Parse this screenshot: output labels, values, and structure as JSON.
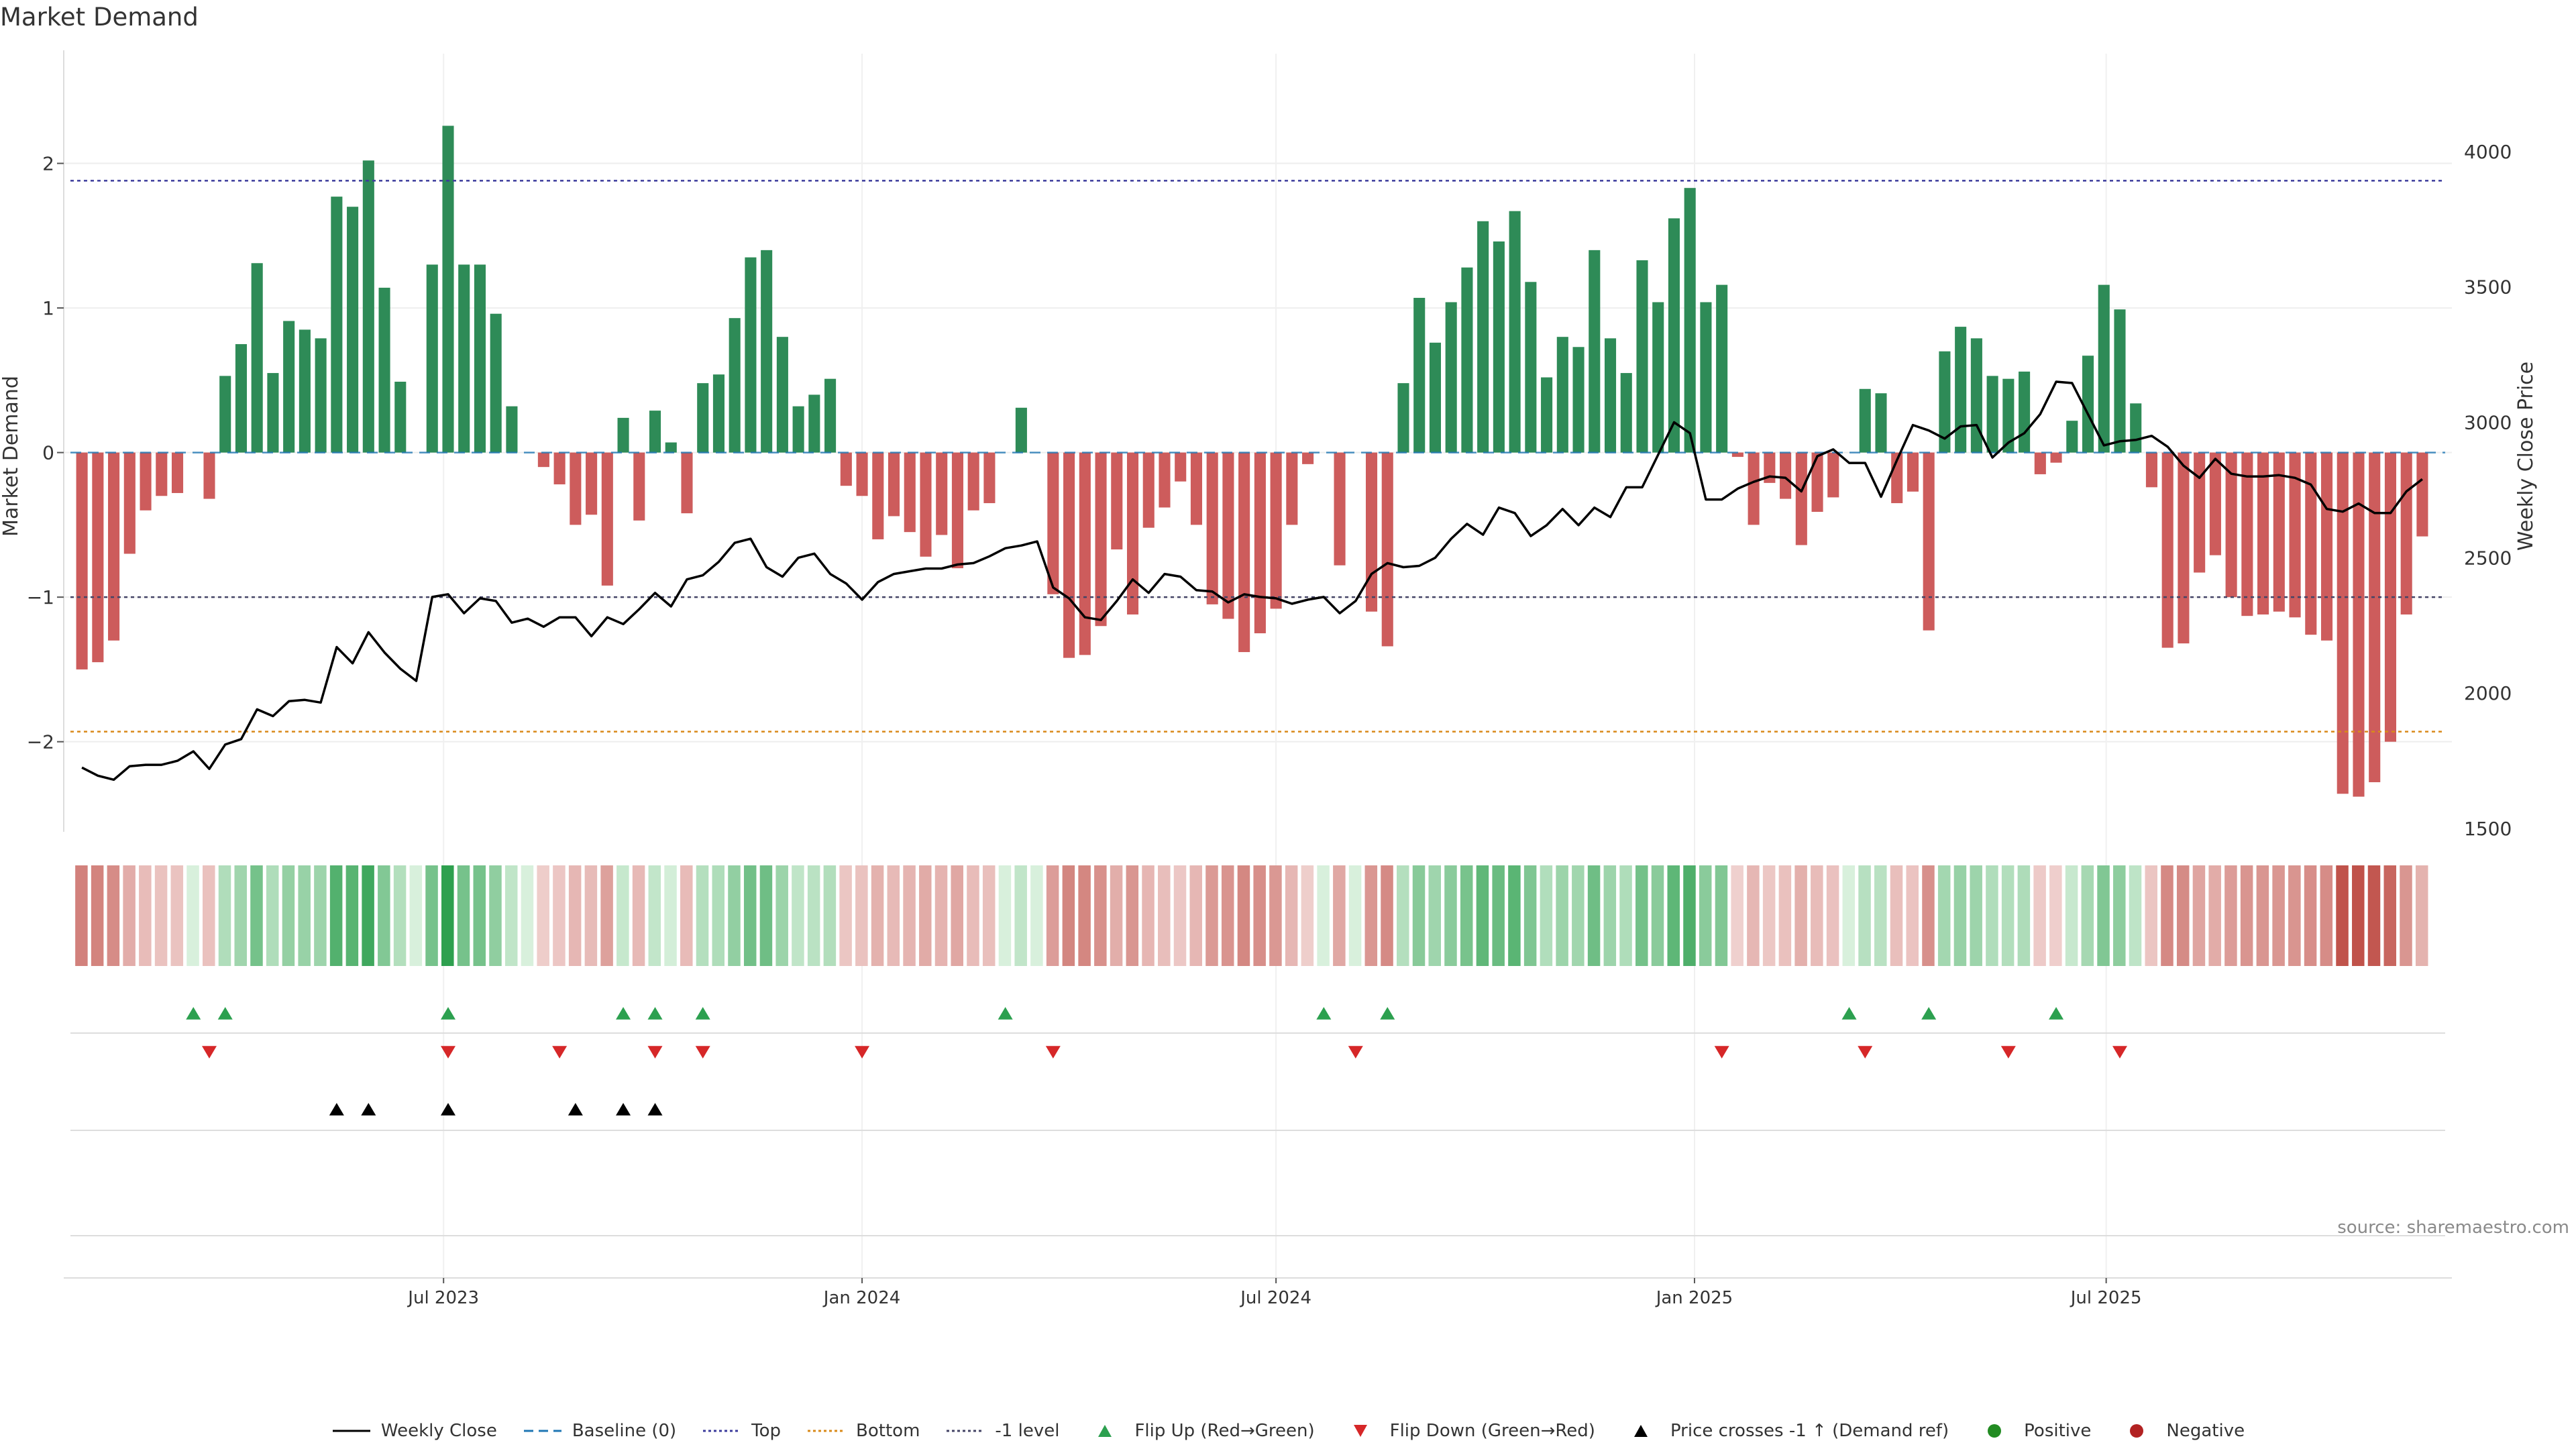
{
  "title": "Market Demand",
  "source": "source: sharemaestro.com",
  "colors": {
    "positive": "#2e8b57",
    "negative": "#cd5c5c",
    "close": "#000000",
    "top": "#3c3c9c",
    "bottom": "#d98a1a",
    "minus1": "#444466",
    "flip_up": "#2ca04f",
    "flip_down": "#d62728",
    "cross": "#000000"
  },
  "legend": [
    {
      "label": "Weekly Close",
      "kind": "line",
      "color": "#000000",
      "dash": ""
    },
    {
      "label": "Baseline (0)",
      "kind": "line",
      "color": "#1f77b4",
      "dash": "14,8"
    },
    {
      "label": "Top",
      "kind": "line",
      "color": "#3c3c9c",
      "dash": "4,4"
    },
    {
      "label": "Bottom",
      "kind": "line",
      "color": "#d98a1a",
      "dash": "4,4"
    },
    {
      "label": "-1 level",
      "kind": "line",
      "color": "#444466",
      "dash": "4,4"
    },
    {
      "label": "Flip Up (Red→Green)",
      "kind": "tri-up",
      "color": "#2ca04f"
    },
    {
      "label": "Flip Down (Green→Red)",
      "kind": "tri-down",
      "color": "#d62728"
    },
    {
      "label": "Price crosses -1 ↑ (Demand ref)",
      "kind": "tri-up",
      "color": "#000000"
    },
    {
      "label": "Positive",
      "kind": "dot",
      "color": "#228b22"
    },
    {
      "label": "Negative",
      "kind": "dot",
      "color": "#b22222"
    }
  ],
  "chart_data": {
    "type": "bar",
    "x_start": "2023-01-23",
    "x_step_days": 7,
    "x_range": [
      "2023-01-15",
      "2025-11-30"
    ],
    "x_ticks": [
      {
        "label": "Jul 2023",
        "date": "2023-07-01"
      },
      {
        "label": "Jan 2024",
        "date": "2024-01-01"
      },
      {
        "label": "Jul 2024",
        "date": "2024-07-01"
      },
      {
        "label": "Jan 2025",
        "date": "2025-01-01"
      },
      {
        "label": "Jul 2025",
        "date": "2025-07-01"
      }
    ],
    "y_left": {
      "label": "Market Demand",
      "range": [
        -2.6,
        2.55
      ],
      "ticks": [
        -2,
        -1,
        0,
        1,
        2
      ],
      "tick_labels": [
        "−2",
        "−1",
        "0",
        "1",
        "2"
      ]
    },
    "y_right": {
      "label": "Weekly Close Price",
      "range": [
        1500,
        4250
      ],
      "ticks": [
        1500,
        2000,
        2500,
        3000,
        3500,
        4000
      ]
    },
    "levels": {
      "top": 1.88,
      "bottom": -1.93,
      "minus1": -1.0,
      "baseline": 0
    },
    "series": [
      {
        "name": "Market Demand",
        "values": [
          -1.5,
          -1.45,
          -1.3,
          -0.7,
          -0.4,
          -0.3,
          -0.28,
          0,
          -0.32,
          0.53,
          0.75,
          1.31,
          0.55,
          0.91,
          0.85,
          0.79,
          1.77,
          1.7,
          2.02,
          1.14,
          0.49,
          0,
          1.3,
          2.26,
          1.3,
          1.3,
          0.96,
          0.32,
          0,
          -0.1,
          -0.22,
          -0.5,
          -0.43,
          -0.92,
          0.24,
          -0.47,
          0.29,
          0.07,
          -0.42,
          0.48,
          0.54,
          0.93,
          1.35,
          1.4,
          0.8,
          0.32,
          0.4,
          0.51,
          -0.23,
          -0.3,
          -0.6,
          -0.44,
          -0.55,
          -0.72,
          -0.57,
          -0.8,
          -0.4,
          -0.35,
          0,
          0.31,
          0,
          -0.98,
          -1.42,
          -1.4,
          -1.2,
          -0.67,
          -1.12,
          -0.52,
          -0.38,
          -0.2,
          -0.5,
          -1.05,
          -1.15,
          -1.38,
          -1.25,
          -1.08,
          -0.5,
          -0.08,
          0,
          -0.78,
          0,
          -1.1,
          -1.34,
          0.48,
          1.07,
          0.76,
          1.04,
          1.28,
          1.6,
          1.46,
          1.67,
          1.18,
          0.52,
          0.8,
          0.73,
          1.4,
          0.79,
          0.55,
          1.33,
          1.04,
          1.62,
          1.83,
          1.04,
          1.16,
          -0.03,
          -0.5,
          -0.21,
          -0.32,
          -0.64,
          -0.41,
          -0.31,
          0,
          0.44,
          0.41,
          -0.35,
          -0.27,
          -1.23,
          0.7,
          0.87,
          0.79,
          0.53,
          0.51,
          0.56,
          -0.15,
          -0.07,
          0.22,
          0.67,
          1.16,
          0.99,
          0.34,
          -0.24,
          -1.35,
          -1.32,
          -0.83,
          -0.71,
          -1.0,
          -1.13,
          -1.12,
          -1.1,
          -1.14,
          -1.26,
          -1.3,
          -2.36,
          -2.38,
          -2.28,
          -2.0,
          -1.12,
          -0.58
        ]
      },
      {
        "name": "Weekly Close",
        "values": [
          1725,
          1695,
          1680,
          1730,
          1735,
          1735,
          1750,
          1785,
          1720,
          1810,
          1830,
          1940,
          1915,
          1970,
          1975,
          1965,
          2170,
          2110,
          2225,
          2150,
          2090,
          2045,
          2355,
          2365,
          2295,
          2350,
          2340,
          2260,
          2275,
          2245,
          2280,
          2280,
          2210,
          2280,
          2255,
          2310,
          2370,
          2320,
          2420,
          2435,
          2485,
          2555,
          2570,
          2465,
          2430,
          2500,
          2515,
          2440,
          2405,
          2345,
          2410,
          2440,
          2450,
          2460,
          2460,
          2475,
          2480,
          2505,
          2535,
          2545,
          2560,
          2390,
          2350,
          2280,
          2270,
          2340,
          2420,
          2370,
          2440,
          2430,
          2380,
          2375,
          2335,
          2365,
          2355,
          2350,
          2330,
          2345,
          2355,
          2295,
          2340,
          2440,
          2480,
          2465,
          2470,
          2500,
          2570,
          2625,
          2585,
          2685,
          2665,
          2580,
          2620,
          2680,
          2620,
          2685,
          2650,
          2760,
          2760,
          2880,
          3000,
          2960,
          2715,
          2715,
          2755,
          2780,
          2800,
          2795,
          2745,
          2875,
          2900,
          2850,
          2850,
          2725,
          2860,
          2990,
          2970,
          2940,
          2985,
          2990,
          2870,
          2925,
          2960,
          3030,
          3150,
          3145,
          3030,
          2915,
          2930,
          2935,
          2950,
          2910,
          2840,
          2795,
          2865,
          2810,
          2800,
          2800,
          2805,
          2795,
          2770,
          2680,
          2670,
          2700,
          2665,
          2665,
          2745,
          2790
        ]
      }
    ],
    "flip_up": [
      "2023-03-13",
      "2023-03-27",
      "2023-07-03",
      "2023-09-18",
      "2023-10-02",
      "2023-10-23",
      "2024-03-04",
      "2024-07-22",
      "2024-08-19",
      "2025-03-10",
      "2025-04-14",
      "2025-06-09"
    ],
    "flip_down": [
      "2023-03-20",
      "2023-07-03",
      "2023-08-21",
      "2023-10-02",
      "2023-10-23",
      "2024-01-01",
      "2024-03-25",
      "2024-08-05",
      "2025-01-13",
      "2025-03-17",
      "2025-05-19",
      "2025-07-07"
    ],
    "price_crosses_minus1": [
      "2023-05-15",
      "2023-05-29",
      "2023-07-03",
      "2023-08-28",
      "2023-09-18",
      "2023-10-02"
    ]
  }
}
